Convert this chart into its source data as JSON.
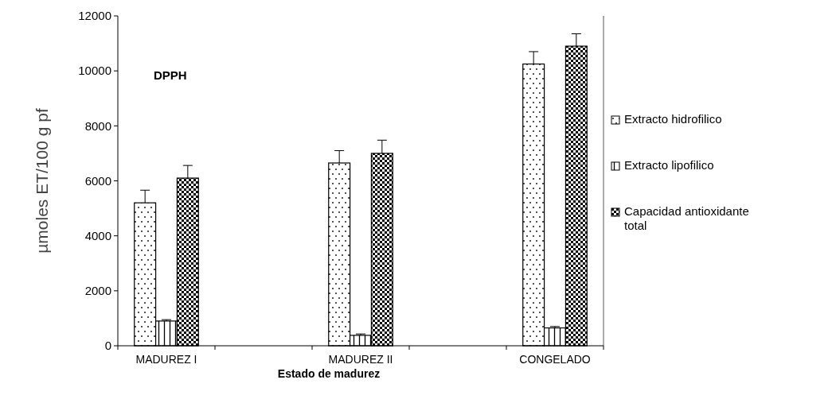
{
  "chart_data": {
    "type": "bar",
    "title": "DPPH",
    "xlabel": "Estado de madurez",
    "ylabel": "µmoles ET/100 g pf",
    "categories": [
      "MADUREZ I",
      null,
      "MADUREZ II",
      null,
      "CONGELADO"
    ],
    "series": [
      {
        "name": "Extracto hidrofilico",
        "color": "#000000",
        "values": [
          5200,
          null,
          6650,
          null,
          10250
        ],
        "errors": [
          460,
          null,
          450,
          null,
          450
        ]
      },
      {
        "name": "Extracto lipofilico",
        "color": "#000000",
        "values": [
          900,
          null,
          380,
          null,
          650
        ],
        "errors": [
          50,
          null,
          50,
          null,
          50
        ]
      },
      {
        "name": "Capacidad antioxidante total",
        "color": "#000000",
        "values": [
          6100,
          null,
          7000,
          null,
          10900
        ],
        "errors": [
          460,
          null,
          480,
          null,
          450
        ]
      }
    ],
    "ylim": [
      0,
      12000
    ],
    "yticks": [
      0,
      2000,
      4000,
      6000,
      8000,
      10000,
      12000
    ],
    "grid": false,
    "legend": "right"
  }
}
